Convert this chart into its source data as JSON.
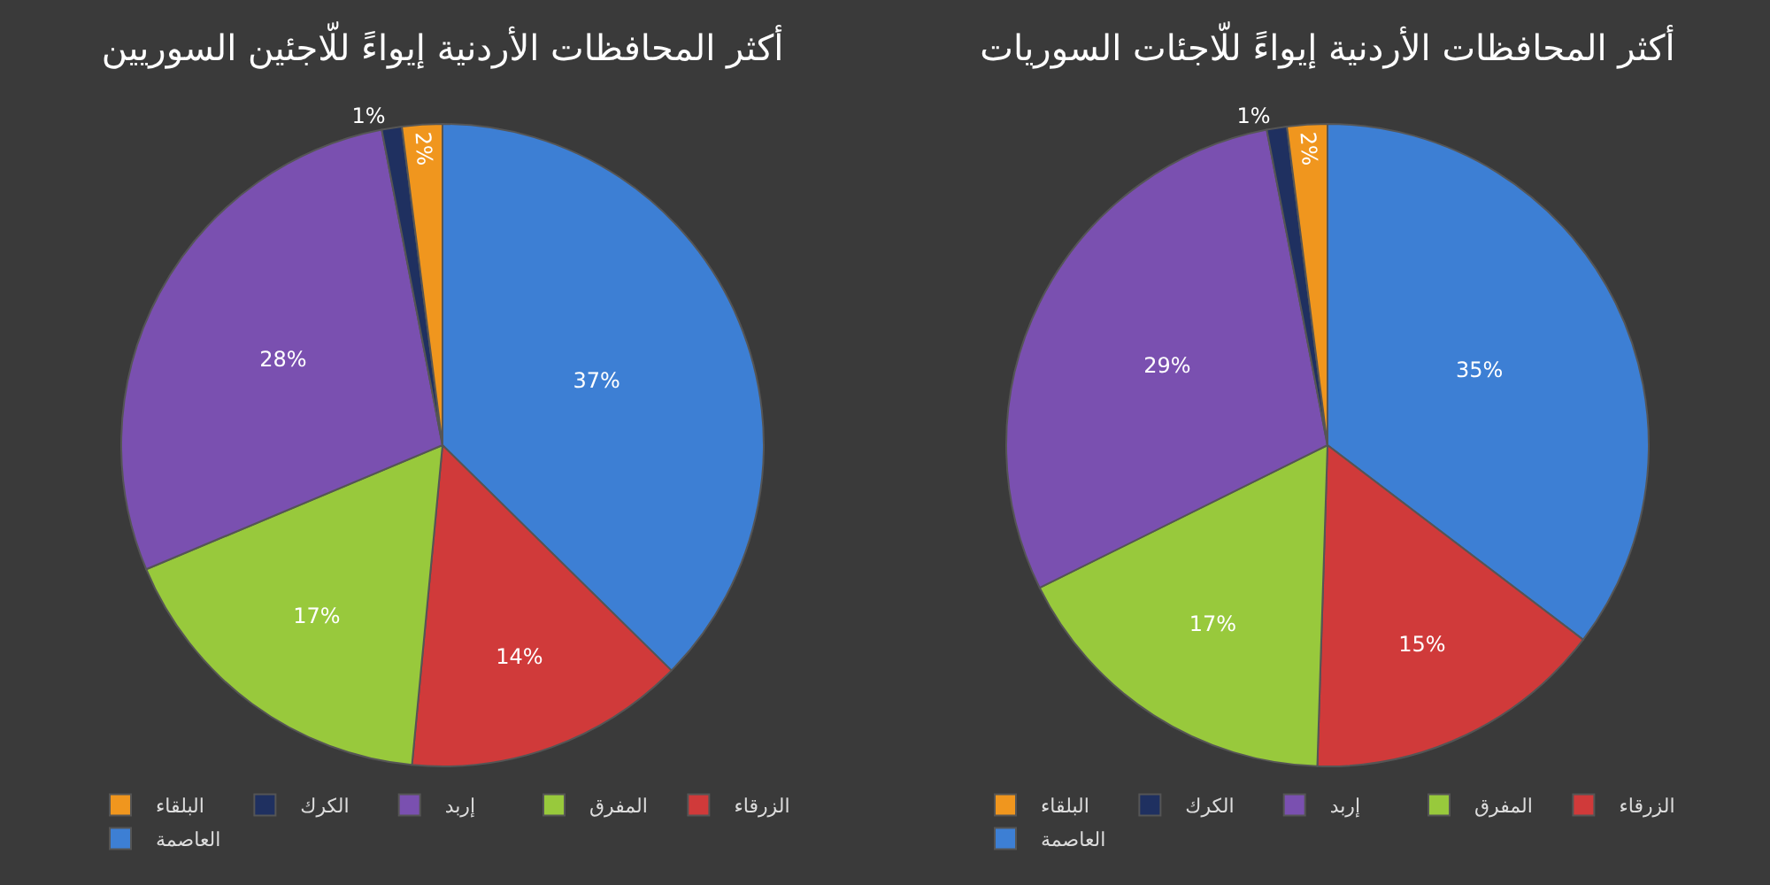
{
  "chart_data": [
    {
      "type": "pie",
      "title": "أكثر المحافظات الأردنية إيواءً للّاجئين السوريين",
      "categories": [
        "العاصمة",
        "الزرقاء",
        "المفرق",
        "إربد",
        "الكرك",
        "البلقاء"
      ],
      "values": [
        37,
        14,
        17,
        28,
        1,
        2
      ],
      "value_labels": [
        "37%",
        "14%",
        "17%",
        "28%",
        "1%",
        "2%"
      ],
      "colors": [
        "#3d7fd4",
        "#d03a3a",
        "#98c93c",
        "#7a50b0",
        "#1f3060",
        "#f0961e"
      ],
      "legend": "bottom"
    },
    {
      "type": "pie",
      "title": "أكثر المحافظات الأردنية إيواءً للّاجئات السوريات",
      "categories": [
        "العاصمة",
        "الزرقاء",
        "المفرق",
        "إربد",
        "الكرك",
        "البلقاء"
      ],
      "values": [
        35,
        15,
        17,
        29,
        1,
        2
      ],
      "value_labels": [
        "35%",
        "15%",
        "17%",
        "29%",
        "1%",
        "2%"
      ],
      "colors": [
        "#3d7fd4",
        "#d03a3a",
        "#98c93c",
        "#7a50b0",
        "#1f3060",
        "#f0961e"
      ],
      "legend": "bottom"
    }
  ]
}
